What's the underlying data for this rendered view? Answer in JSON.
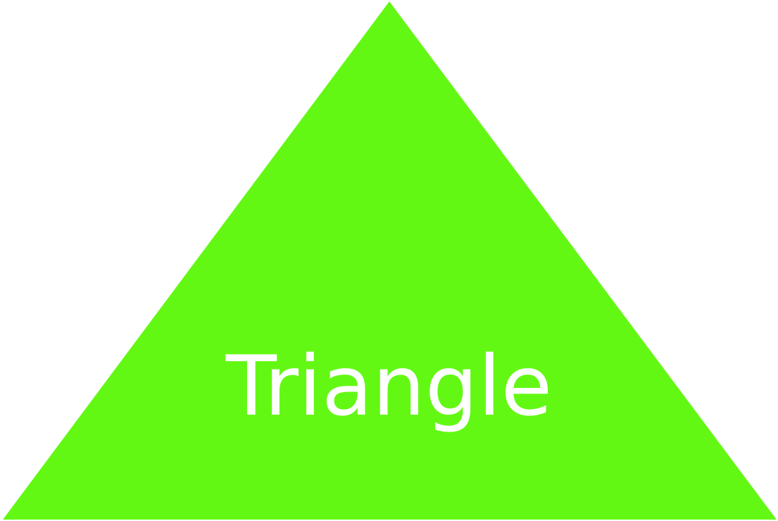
{
  "shape": {
    "label": "Triangle",
    "fill_color": "#63f814",
    "text_color": "#ffffff"
  }
}
